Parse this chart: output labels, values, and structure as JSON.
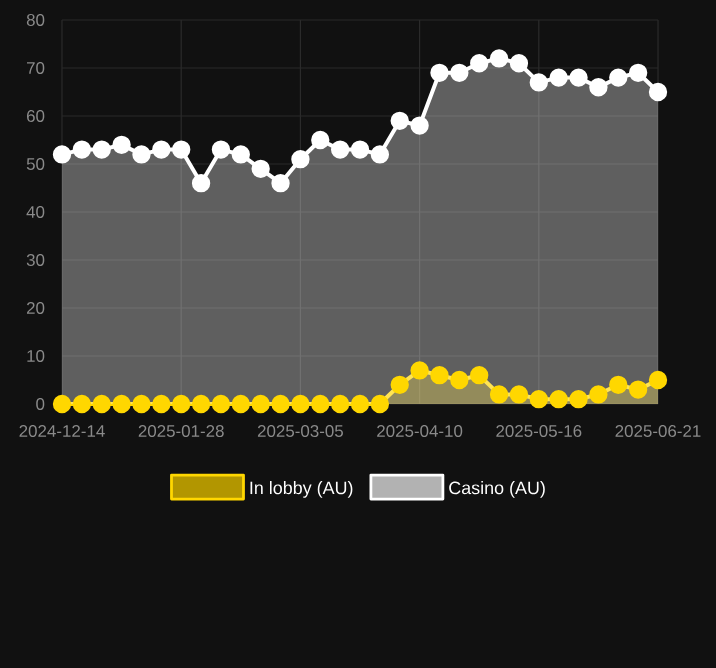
{
  "chart_data": {
    "type": "area",
    "categories": [
      "2024-12-14",
      null,
      null,
      null,
      null,
      null,
      "2025-01-28",
      null,
      null,
      null,
      null,
      null,
      "2025-03-05",
      null,
      null,
      null,
      null,
      null,
      "2025-04-10",
      null,
      null,
      null,
      null,
      null,
      "2025-05-16",
      null,
      null,
      null,
      null,
      null,
      "2025-06-21"
    ],
    "series": [
      {
        "name": "In lobby (AU)",
        "color": "#ffd700",
        "values": [
          0,
          0,
          0,
          0,
          0,
          0,
          0,
          0,
          0,
          0,
          0,
          0,
          0,
          0,
          0,
          0,
          0,
          4,
          7,
          6,
          5,
          6,
          2,
          2,
          1,
          1,
          1,
          2,
          4,
          3,
          5
        ]
      },
      {
        "name": "Casino (AU)",
        "color": "#ffffff",
        "values": [
          52,
          53,
          53,
          54,
          52,
          53,
          53,
          46,
          53,
          52,
          49,
          46,
          51,
          55,
          53,
          53,
          52,
          59,
          58,
          69,
          69,
          71,
          72,
          71,
          67,
          68,
          68,
          66,
          68,
          69,
          65
        ]
      }
    ],
    "ylim": [
      0,
      80
    ],
    "yticks": [
      0,
      10,
      20,
      30,
      40,
      50,
      60,
      70,
      80
    ],
    "grid": true,
    "legend": "bottom",
    "marker": "circle"
  }
}
